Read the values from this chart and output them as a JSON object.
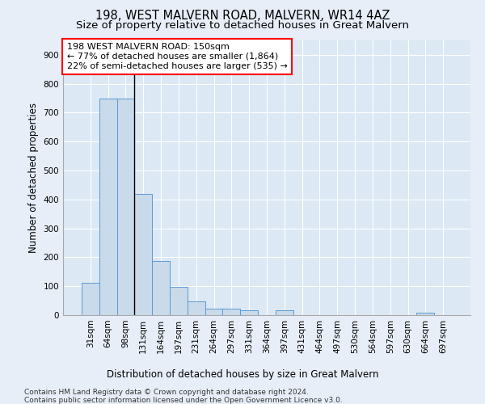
{
  "title1": "198, WEST MALVERN ROAD, MALVERN, WR14 4AZ",
  "title2": "Size of property relative to detached houses in Great Malvern",
  "xlabel": "Distribution of detached houses by size in Great Malvern",
  "ylabel": "Number of detached properties",
  "footnote1": "Contains HM Land Registry data © Crown copyright and database right 2024.",
  "footnote2": "Contains public sector information licensed under the Open Government Licence v3.0.",
  "bar_color": "#c9daea",
  "bar_edge_color": "#5b9bd5",
  "background_color": "#dce8f4",
  "fig_background_color": "#e8eef8",
  "grid_color": "#ffffff",
  "categories": [
    "31sqm",
    "64sqm",
    "98sqm",
    "131sqm",
    "164sqm",
    "197sqm",
    "231sqm",
    "264sqm",
    "297sqm",
    "331sqm",
    "364sqm",
    "397sqm",
    "431sqm",
    "464sqm",
    "497sqm",
    "530sqm",
    "564sqm",
    "597sqm",
    "630sqm",
    "664sqm",
    "697sqm"
  ],
  "values": [
    113,
    748,
    750,
    418,
    188,
    97,
    47,
    22,
    22,
    18,
    0,
    18,
    0,
    0,
    0,
    0,
    0,
    0,
    0,
    8,
    0
  ],
  "ylim": [
    0,
    950
  ],
  "yticks": [
    0,
    100,
    200,
    300,
    400,
    500,
    600,
    700,
    800,
    900
  ],
  "annotation_text": "198 WEST MALVERN ROAD: 150sqm\n← 77% of detached houses are smaller (1,864)\n22% of semi-detached houses are larger (535) →",
  "vline_x": 2.5,
  "title1_fontsize": 10.5,
  "title2_fontsize": 9.5,
  "xlabel_fontsize": 8.5,
  "ylabel_fontsize": 8.5,
  "tick_fontsize": 7.5,
  "annotation_fontsize": 8,
  "footnote_fontsize": 6.5
}
